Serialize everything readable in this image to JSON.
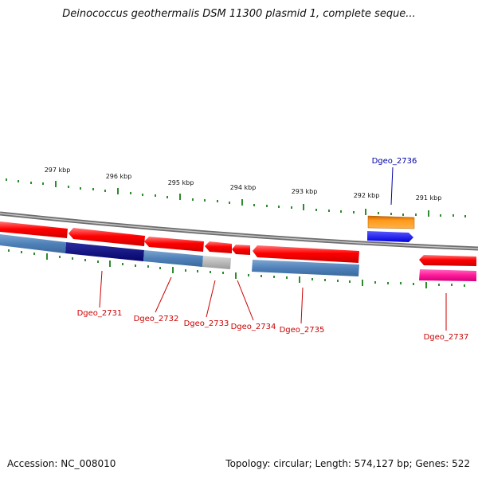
{
  "title": "Deinococcus geothermalis DSM 11300 plasmid 1, complete seque...",
  "footer": {
    "accession": "Accession: NC_008010",
    "summary": "Topology: circular; Length: 574,127 bp; Genes: 522"
  },
  "colors": {
    "backbone": "#8a8a8a",
    "tick": "#2e8b2e",
    "forward_gene": "#ff0000",
    "cds_blue": "#4f81b8",
    "cds_darkblue": "#0a0a80",
    "cds_grey": "#b0b0b0",
    "gene_orange": "#ff9a1a",
    "gene_blue": "#1010ff",
    "gene_pink": "#ff1a99",
    "label_red": "#cc0000",
    "label_blue": "#0000aa"
  },
  "kbp_labels": [
    "297 kbp",
    "296 kbp",
    "295 kbp",
    "294 kbp",
    "293 kbp",
    "292 kbp",
    "291 kbp"
  ],
  "gene_labels": [
    {
      "name": "Dgeo_2731",
      "color": "red"
    },
    {
      "name": "Dgeo_2732",
      "color": "red"
    },
    {
      "name": "Dgeo_2733",
      "color": "red"
    },
    {
      "name": "Dgeo_2734",
      "color": "red"
    },
    {
      "name": "Dgeo_2735",
      "color": "red"
    },
    {
      "name": "Dgeo_2736",
      "color": "blue"
    },
    {
      "name": "Dgeo_2737",
      "color": "red"
    }
  ]
}
